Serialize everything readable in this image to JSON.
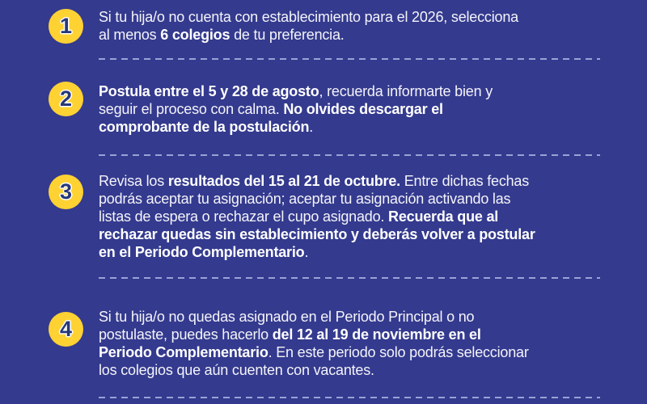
{
  "colors": {
    "background": "#343A8E",
    "text-regular": "#F4F4F9",
    "text-bold": "#FFFFFF",
    "dash": "#99A3D6",
    "badge-bg": "#FFD233",
    "badge-number": "#283878",
    "badge-number-outline": "#FFFFFF"
  },
  "steps": [
    {
      "number": "1",
      "lines": [
        [
          {
            "t": "Si tu hija/o no cuenta con establecimiento para el 2026, selecciona",
            "b": false
          }
        ],
        [
          {
            "t": "al menos ",
            "b": false
          },
          {
            "t": "6 colegios",
            "b": true
          },
          {
            "t": " de tu preferencia.",
            "b": false
          }
        ]
      ]
    },
    {
      "number": "2",
      "lines": [
        [
          {
            "t": "Postula entre el 5 y 28 de agosto",
            "b": true
          },
          {
            "t": ", recuerda informarte bien y",
            "b": false
          }
        ],
        [
          {
            "t": "seguir el proceso con calma. ",
            "b": false
          },
          {
            "t": "No olvides descargar el",
            "b": true
          }
        ],
        [
          {
            "t": "comprobante de la postulación",
            "b": true
          },
          {
            "t": ".",
            "b": false
          }
        ]
      ]
    },
    {
      "number": "3",
      "lines": [
        [
          {
            "t": "Revisa los ",
            "b": false
          },
          {
            "t": "resultados del 15 al 21 de octubre.",
            "b": true
          },
          {
            "t": " Entre dichas fechas",
            "b": false
          }
        ],
        [
          {
            "t": "podrás aceptar tu asignación; aceptar tu asignación activando las",
            "b": false
          }
        ],
        [
          {
            "t": "listas de espera o rechazar el cupo asignado. ",
            "b": false
          },
          {
            "t": "Recuerda que al",
            "b": true
          }
        ],
        [
          {
            "t": "rechazar quedas sin establecimiento y deberás volver a postular",
            "b": true
          }
        ],
        [
          {
            "t": "en el Periodo Complementario",
            "b": true
          },
          {
            "t": ".",
            "b": false
          }
        ]
      ]
    },
    {
      "number": "4",
      "lines": [
        [
          {
            "t": "Si tu hija/o no quedas asignado en el Periodo Principal o no",
            "b": false
          }
        ],
        [
          {
            "t": "postulaste, puedes hacerlo ",
            "b": false
          },
          {
            "t": "del 12 al 19 de noviembre en el",
            "b": true
          }
        ],
        [
          {
            "t": "Periodo Complementario",
            "b": true
          },
          {
            "t": ". En este periodo solo podrás seleccionar",
            "b": false
          }
        ],
        [
          {
            "t": "los colegios que aún cuenten con vacantes.",
            "b": false
          }
        ]
      ]
    }
  ]
}
